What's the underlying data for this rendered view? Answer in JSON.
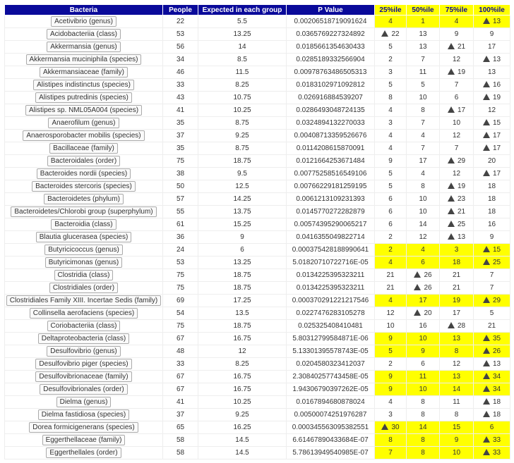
{
  "table": {
    "columns": [
      "Bacteria",
      "People",
      "Expected in each group",
      "P Value",
      "25%ile",
      "50%ile",
      "75%ile",
      "100%ile"
    ],
    "rows": [
      {
        "bacteria": "Acetivibrio (genus)",
        "people": 22,
        "expected": 5.5,
        "p_value": "0.00206518719091624",
        "quartiles": [
          4,
          1,
          4,
          13
        ],
        "flag": 3,
        "highlight": true
      },
      {
        "bacteria": "Acidobacteriia (class)",
        "people": 53,
        "expected": 13.25,
        "p_value": "0.0365769227324892",
        "quartiles": [
          22,
          13,
          9,
          9
        ],
        "flag": 0,
        "highlight": false
      },
      {
        "bacteria": "Akkermansia (genus)",
        "people": 56,
        "expected": 14,
        "p_value": "0.0185661354630433",
        "quartiles": [
          5,
          13,
          21,
          17
        ],
        "flag": 2,
        "highlight": false
      },
      {
        "bacteria": "Akkermansia muciniphila (species)",
        "people": 34,
        "expected": 8.5,
        "p_value": "0.0285189332566904",
        "quartiles": [
          2,
          7,
          12,
          13
        ],
        "flag": 3,
        "highlight": false
      },
      {
        "bacteria": "Akkermansiaceae (family)",
        "people": 46,
        "expected": 11.5,
        "p_value": "0.00978763486505313",
        "quartiles": [
          3,
          11,
          19,
          13
        ],
        "flag": 2,
        "highlight": false
      },
      {
        "bacteria": "Alistipes indistinctus (species)",
        "people": 33,
        "expected": 8.25,
        "p_value": "0.0183102971092812",
        "quartiles": [
          5,
          5,
          7,
          16
        ],
        "flag": 3,
        "highlight": false
      },
      {
        "bacteria": "Alistipes putredinis (species)",
        "people": 43,
        "expected": 10.75,
        "p_value": "0.026916884539207",
        "quartiles": [
          8,
          10,
          6,
          19
        ],
        "flag": 3,
        "highlight": false
      },
      {
        "bacteria": "Alistipes sp. NML05A004 (species)",
        "people": 41,
        "expected": 10.25,
        "p_value": "0.0286493048724135",
        "quartiles": [
          4,
          8,
          17,
          12
        ],
        "flag": 2,
        "highlight": false
      },
      {
        "bacteria": "Anaerofilum (genus)",
        "people": 35,
        "expected": 8.75,
        "p_value": "0.0324894132270033",
        "quartiles": [
          3,
          7,
          10,
          15
        ],
        "flag": 3,
        "highlight": false
      },
      {
        "bacteria": "Anaerosporobacter mobilis (species)",
        "people": 37,
        "expected": 9.25,
        "p_value": "0.00408713359526676",
        "quartiles": [
          4,
          4,
          12,
          17
        ],
        "flag": 3,
        "highlight": false
      },
      {
        "bacteria": "Bacillaceae (family)",
        "people": 35,
        "expected": 8.75,
        "p_value": "0.0114208615870091",
        "quartiles": [
          4,
          7,
          7,
          17
        ],
        "flag": 3,
        "highlight": false
      },
      {
        "bacteria": "Bacteroidales (order)",
        "people": 75,
        "expected": 18.75,
        "p_value": "0.0121664253671484",
        "quartiles": [
          9,
          17,
          29,
          20
        ],
        "flag": 2,
        "highlight": false
      },
      {
        "bacteria": "Bacteroides nordii (species)",
        "people": 38,
        "expected": 9.5,
        "p_value": "0.00775258516549106",
        "quartiles": [
          5,
          4,
          12,
          17
        ],
        "flag": 3,
        "highlight": false
      },
      {
        "bacteria": "Bacteroides stercoris (species)",
        "people": 50,
        "expected": 12.5,
        "p_value": "0.00766229181259195",
        "quartiles": [
          5,
          8,
          19,
          18
        ],
        "flag": 2,
        "highlight": false
      },
      {
        "bacteria": "Bacteroidetes (phylum)",
        "people": 57,
        "expected": 14.25,
        "p_value": "0.0061213109231393",
        "quartiles": [
          6,
          10,
          23,
          18
        ],
        "flag": 2,
        "highlight": false
      },
      {
        "bacteria": "Bacteroidetes/Chlorobi group (superphylum)",
        "people": 55,
        "expected": 13.75,
        "p_value": "0.0145770272282879",
        "quartiles": [
          6,
          10,
          21,
          18
        ],
        "flag": 2,
        "highlight": false
      },
      {
        "bacteria": "Bacteroidia (class)",
        "people": 61,
        "expected": 15.25,
        "p_value": "0.00574395290065217",
        "quartiles": [
          6,
          14,
          25,
          16
        ],
        "flag": 2,
        "highlight": false
      },
      {
        "bacteria": "Blautia glucerasea (species)",
        "people": 36,
        "expected": 9,
        "p_value": "0.0416355049822714",
        "quartiles": [
          2,
          12,
          13,
          9
        ],
        "flag": 2,
        "highlight": false
      },
      {
        "bacteria": "Butyricicoccus (genus)",
        "people": 24,
        "expected": 6,
        "p_value": "0.000375428188990641",
        "quartiles": [
          2,
          4,
          3,
          15
        ],
        "flag": 3,
        "highlight": true
      },
      {
        "bacteria": "Butyricimonas (genus)",
        "people": 53,
        "expected": 13.25,
        "p_value": "5.01820710722716E-05",
        "quartiles": [
          4,
          6,
          18,
          25
        ],
        "flag": 3,
        "highlight": true
      },
      {
        "bacteria": "Clostridia (class)",
        "people": 75,
        "expected": 18.75,
        "p_value": "0.0134225395323211",
        "quartiles": [
          21,
          26,
          21,
          7
        ],
        "flag": 1,
        "highlight": false
      },
      {
        "bacteria": "Clostridiales (order)",
        "people": 75,
        "expected": 18.75,
        "p_value": "0.0134225395323211",
        "quartiles": [
          21,
          26,
          21,
          7
        ],
        "flag": 1,
        "highlight": false
      },
      {
        "bacteria": "Clostridiales Family XIII. Incertae Sedis (family)",
        "people": 69,
        "expected": 17.25,
        "p_value": "0.000370291221217546",
        "quartiles": [
          4,
          17,
          19,
          29
        ],
        "flag": 3,
        "highlight": true
      },
      {
        "bacteria": "Collinsella aerofaciens (species)",
        "people": 54,
        "expected": 13.5,
        "p_value": "0.0227476283105278",
        "quartiles": [
          12,
          20,
          17,
          5
        ],
        "flag": 1,
        "highlight": false
      },
      {
        "bacteria": "Coriobacteriia (class)",
        "people": 75,
        "expected": 18.75,
        "p_value": "0.025325408410481",
        "quartiles": [
          10,
          16,
          28,
          21
        ],
        "flag": 2,
        "highlight": false
      },
      {
        "bacteria": "Deltaproteobacteria (class)",
        "people": 67,
        "expected": 16.75,
        "p_value": "5.80312799584871E-06",
        "quartiles": [
          9,
          10,
          13,
          35
        ],
        "flag": 3,
        "highlight": true
      },
      {
        "bacteria": "Desulfovibrio (genus)",
        "people": 48,
        "expected": 12,
        "p_value": "5.13301395578743E-05",
        "quartiles": [
          5,
          9,
          8,
          26
        ],
        "flag": 3,
        "highlight": true
      },
      {
        "bacteria": "Desulfovibrio piger (species)",
        "people": 33,
        "expected": 8.25,
        "p_value": "0.0204580323412037",
        "quartiles": [
          2,
          6,
          12,
          13
        ],
        "flag": 3,
        "highlight": false
      },
      {
        "bacteria": "Desulfovibrionaceae (family)",
        "people": 67,
        "expected": 16.75,
        "p_value": "2.30840257743458E-05",
        "quartiles": [
          9,
          11,
          13,
          34
        ],
        "flag": 3,
        "highlight": true
      },
      {
        "bacteria": "Desulfovibrionales (order)",
        "people": 67,
        "expected": 16.75,
        "p_value": "1.94306790397262E-05",
        "quartiles": [
          9,
          10,
          14,
          34
        ],
        "flag": 3,
        "highlight": true
      },
      {
        "bacteria": "Dielma (genus)",
        "people": 41,
        "expected": 10.25,
        "p_value": "0.0167894680878024",
        "quartiles": [
          4,
          8,
          11,
          18
        ],
        "flag": 3,
        "highlight": false
      },
      {
        "bacteria": "Dielma fastidiosa (species)",
        "people": 37,
        "expected": 9.25,
        "p_value": "0.00500074251976287",
        "quartiles": [
          3,
          8,
          8,
          18
        ],
        "flag": 3,
        "highlight": false
      },
      {
        "bacteria": "Dorea formicigenerans (species)",
        "people": 65,
        "expected": 16.25,
        "p_value": "0.000345563095382551",
        "quartiles": [
          30,
          14,
          15,
          6
        ],
        "flag": 0,
        "highlight": true
      },
      {
        "bacteria": "Eggerthellaceae (family)",
        "people": 58,
        "expected": 14.5,
        "p_value": "6.61467890433684E-07",
        "quartiles": [
          8,
          8,
          9,
          33
        ],
        "flag": 3,
        "highlight": true
      },
      {
        "bacteria": "Eggerthellales (order)",
        "people": 58,
        "expected": 14.5,
        "p_value": "5.78613949540985E-07",
        "quartiles": [
          7,
          8,
          10,
          33
        ],
        "flag": 3,
        "highlight": true
      }
    ]
  }
}
